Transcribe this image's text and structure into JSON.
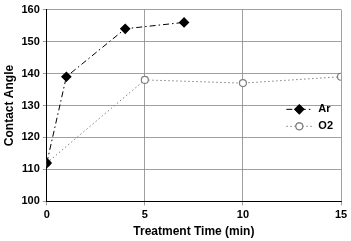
{
  "chart_data": {
    "type": "line",
    "x_label": "Treatment Time (min)",
    "y_label": "Contact Angle",
    "series": [
      {
        "name": "Ar",
        "color": "#000000",
        "marker": "diamond",
        "line_style": "dashdot",
        "x": [
          0,
          1,
          4,
          7
        ],
        "values": [
          112,
          139,
          154,
          156
        ]
      },
      {
        "name": "O2",
        "color": "#808080",
        "marker": "open_circle",
        "line_style": "dotted",
        "x": [
          0,
          5,
          10,
          15
        ],
        "values": [
          112,
          138,
          137,
          139
        ]
      }
    ],
    "xlim": [
      0,
      15
    ],
    "xticks": [
      0,
      5,
      10,
      15
    ],
    "ylim": [
      100,
      160
    ],
    "yticks": [
      100,
      110,
      120,
      130,
      140,
      150,
      160
    ],
    "grid": true,
    "legend": "right"
  }
}
